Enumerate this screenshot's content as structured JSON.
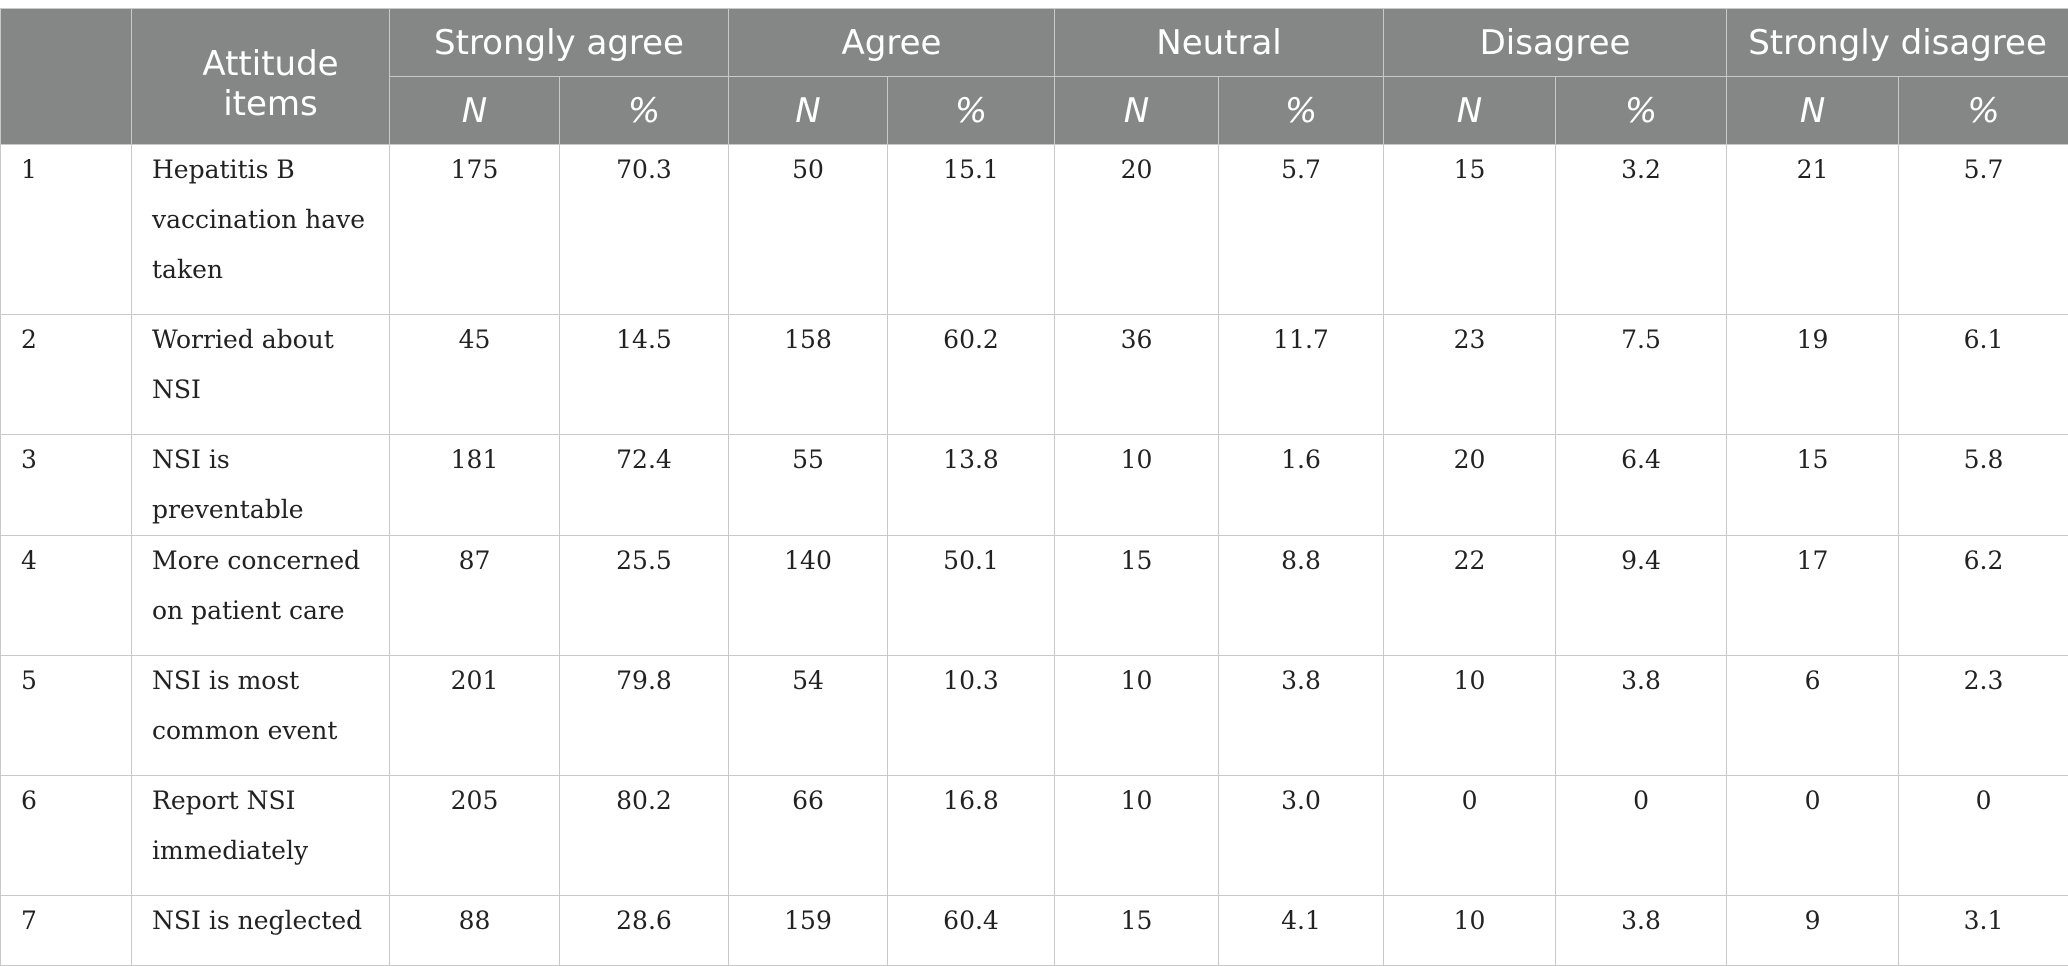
{
  "table": {
    "headers": {
      "number": "",
      "item": "Attitude items",
      "groups": [
        "Strongly agree",
        "Agree",
        "Neutral",
        "Disagree",
        "Strongly disagree"
      ],
      "sub": [
        "N",
        "%"
      ]
    },
    "rows": [
      {
        "num": "1",
        "item": "Hepatitis B vaccination have taken",
        "values": [
          "175",
          "70.3",
          "50",
          "15.1",
          "20",
          "5.7",
          "15",
          "3.2",
          "21",
          "5.7"
        ]
      },
      {
        "num": "2",
        "item": "Worried about NSI",
        "values": [
          "45",
          "14.5",
          "158",
          "60.2",
          "36",
          "11.7",
          "23",
          "7.5",
          "19",
          "6.1"
        ]
      },
      {
        "num": "3",
        "item": "NSI is preventable",
        "values": [
          "181",
          "72.4",
          "55",
          "13.8",
          "10",
          "1.6",
          "20",
          "6.4",
          "15",
          "5.8"
        ]
      },
      {
        "num": "4",
        "item": "More concerned on patient care",
        "values": [
          "87",
          "25.5",
          "140",
          "50.1",
          "15",
          "8.8",
          "22",
          "9.4",
          "17",
          "6.2"
        ]
      },
      {
        "num": "5",
        "item": "NSI is most common event",
        "values": [
          "201",
          "79.8",
          "54",
          "10.3",
          "10",
          "3.8",
          "10",
          "3.8",
          "6",
          "2.3"
        ]
      },
      {
        "num": "6",
        "item": "Report NSI immediately",
        "values": [
          "205",
          "80.2",
          "66",
          "16.8",
          "10",
          "3.0",
          "0",
          "0",
          "0",
          "0"
        ]
      },
      {
        "num": "7",
        "item": "NSI is neglected",
        "values": [
          "88",
          "28.6",
          "159",
          "60.4",
          "15",
          "4.1",
          "10",
          "3.8",
          "9",
          "3.1"
        ]
      }
    ]
  }
}
